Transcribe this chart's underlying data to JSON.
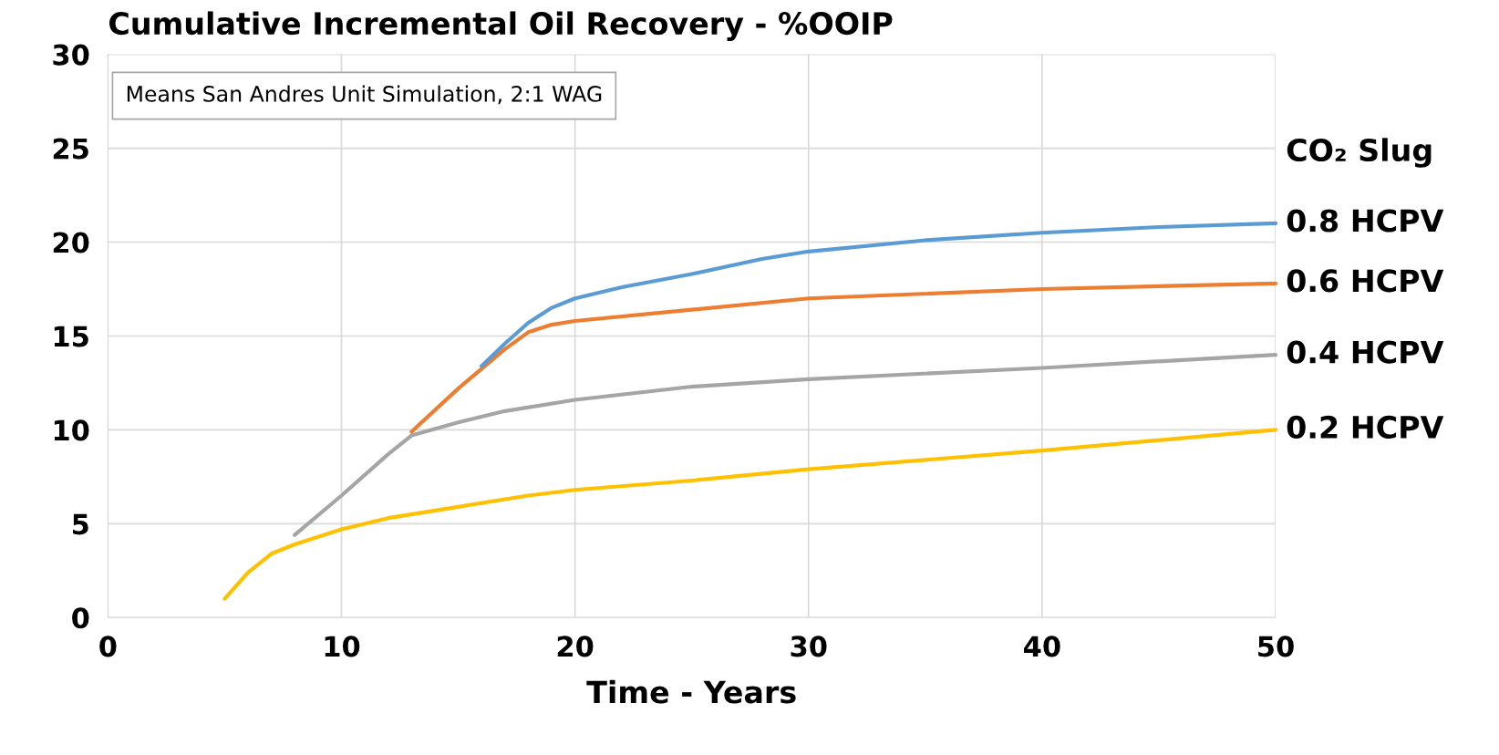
{
  "chart_data": {
    "type": "line",
    "title": "Cumulative Incremental Oil Recovery - %OOIP",
    "xlabel": "Time - Years",
    "legend_title": "CO₂ Slug",
    "annotations": [
      "Means San Andres Unit Simulation, 2:1 WAG"
    ],
    "xlim": [
      0,
      50
    ],
    "xticks": [
      0,
      10,
      20,
      30,
      40,
      50
    ],
    "ylim": [
      0,
      30
    ],
    "yticks": [
      0,
      5,
      10,
      15,
      20,
      25,
      30
    ],
    "grid": true,
    "marker": "none",
    "line_style": "solid",
    "series": [
      {
        "name": "0.8 HCPV",
        "color": "#5b9bd5",
        "x": [
          16,
          17,
          18,
          19,
          20,
          22,
          25,
          28,
          30,
          35,
          40,
          45,
          50
        ],
        "values": [
          13.4,
          14.6,
          15.7,
          16.5,
          17.0,
          17.6,
          18.3,
          19.1,
          19.5,
          20.1,
          20.5,
          20.8,
          21.0
        ]
      },
      {
        "name": "0.6 HCPV",
        "color": "#ed7d31",
        "x": [
          13,
          15,
          17,
          18,
          19,
          20,
          25,
          30,
          40,
          50
        ],
        "values": [
          9.9,
          12.2,
          14.3,
          15.2,
          15.6,
          15.8,
          16.4,
          17.0,
          17.5,
          17.8
        ]
      },
      {
        "name": "0.4 HCPV",
        "color": "#a5a5a5",
        "x": [
          8,
          10,
          12,
          13,
          15,
          17,
          20,
          25,
          30,
          40,
          50
        ],
        "values": [
          4.4,
          6.5,
          8.7,
          9.7,
          10.4,
          11.0,
          11.6,
          12.3,
          12.7,
          13.3,
          14.0
        ]
      },
      {
        "name": "0.2 HCPV",
        "color": "#ffc000",
        "x": [
          5,
          6,
          7,
          8,
          10,
          12,
          15,
          18,
          20,
          25,
          30,
          40,
          50
        ],
        "values": [
          1,
          2.4,
          3.4,
          3.9,
          4.7,
          5.3,
          5.9,
          6.5,
          6.8,
          7.3,
          7.9,
          8.9,
          10.0
        ]
      }
    ]
  }
}
